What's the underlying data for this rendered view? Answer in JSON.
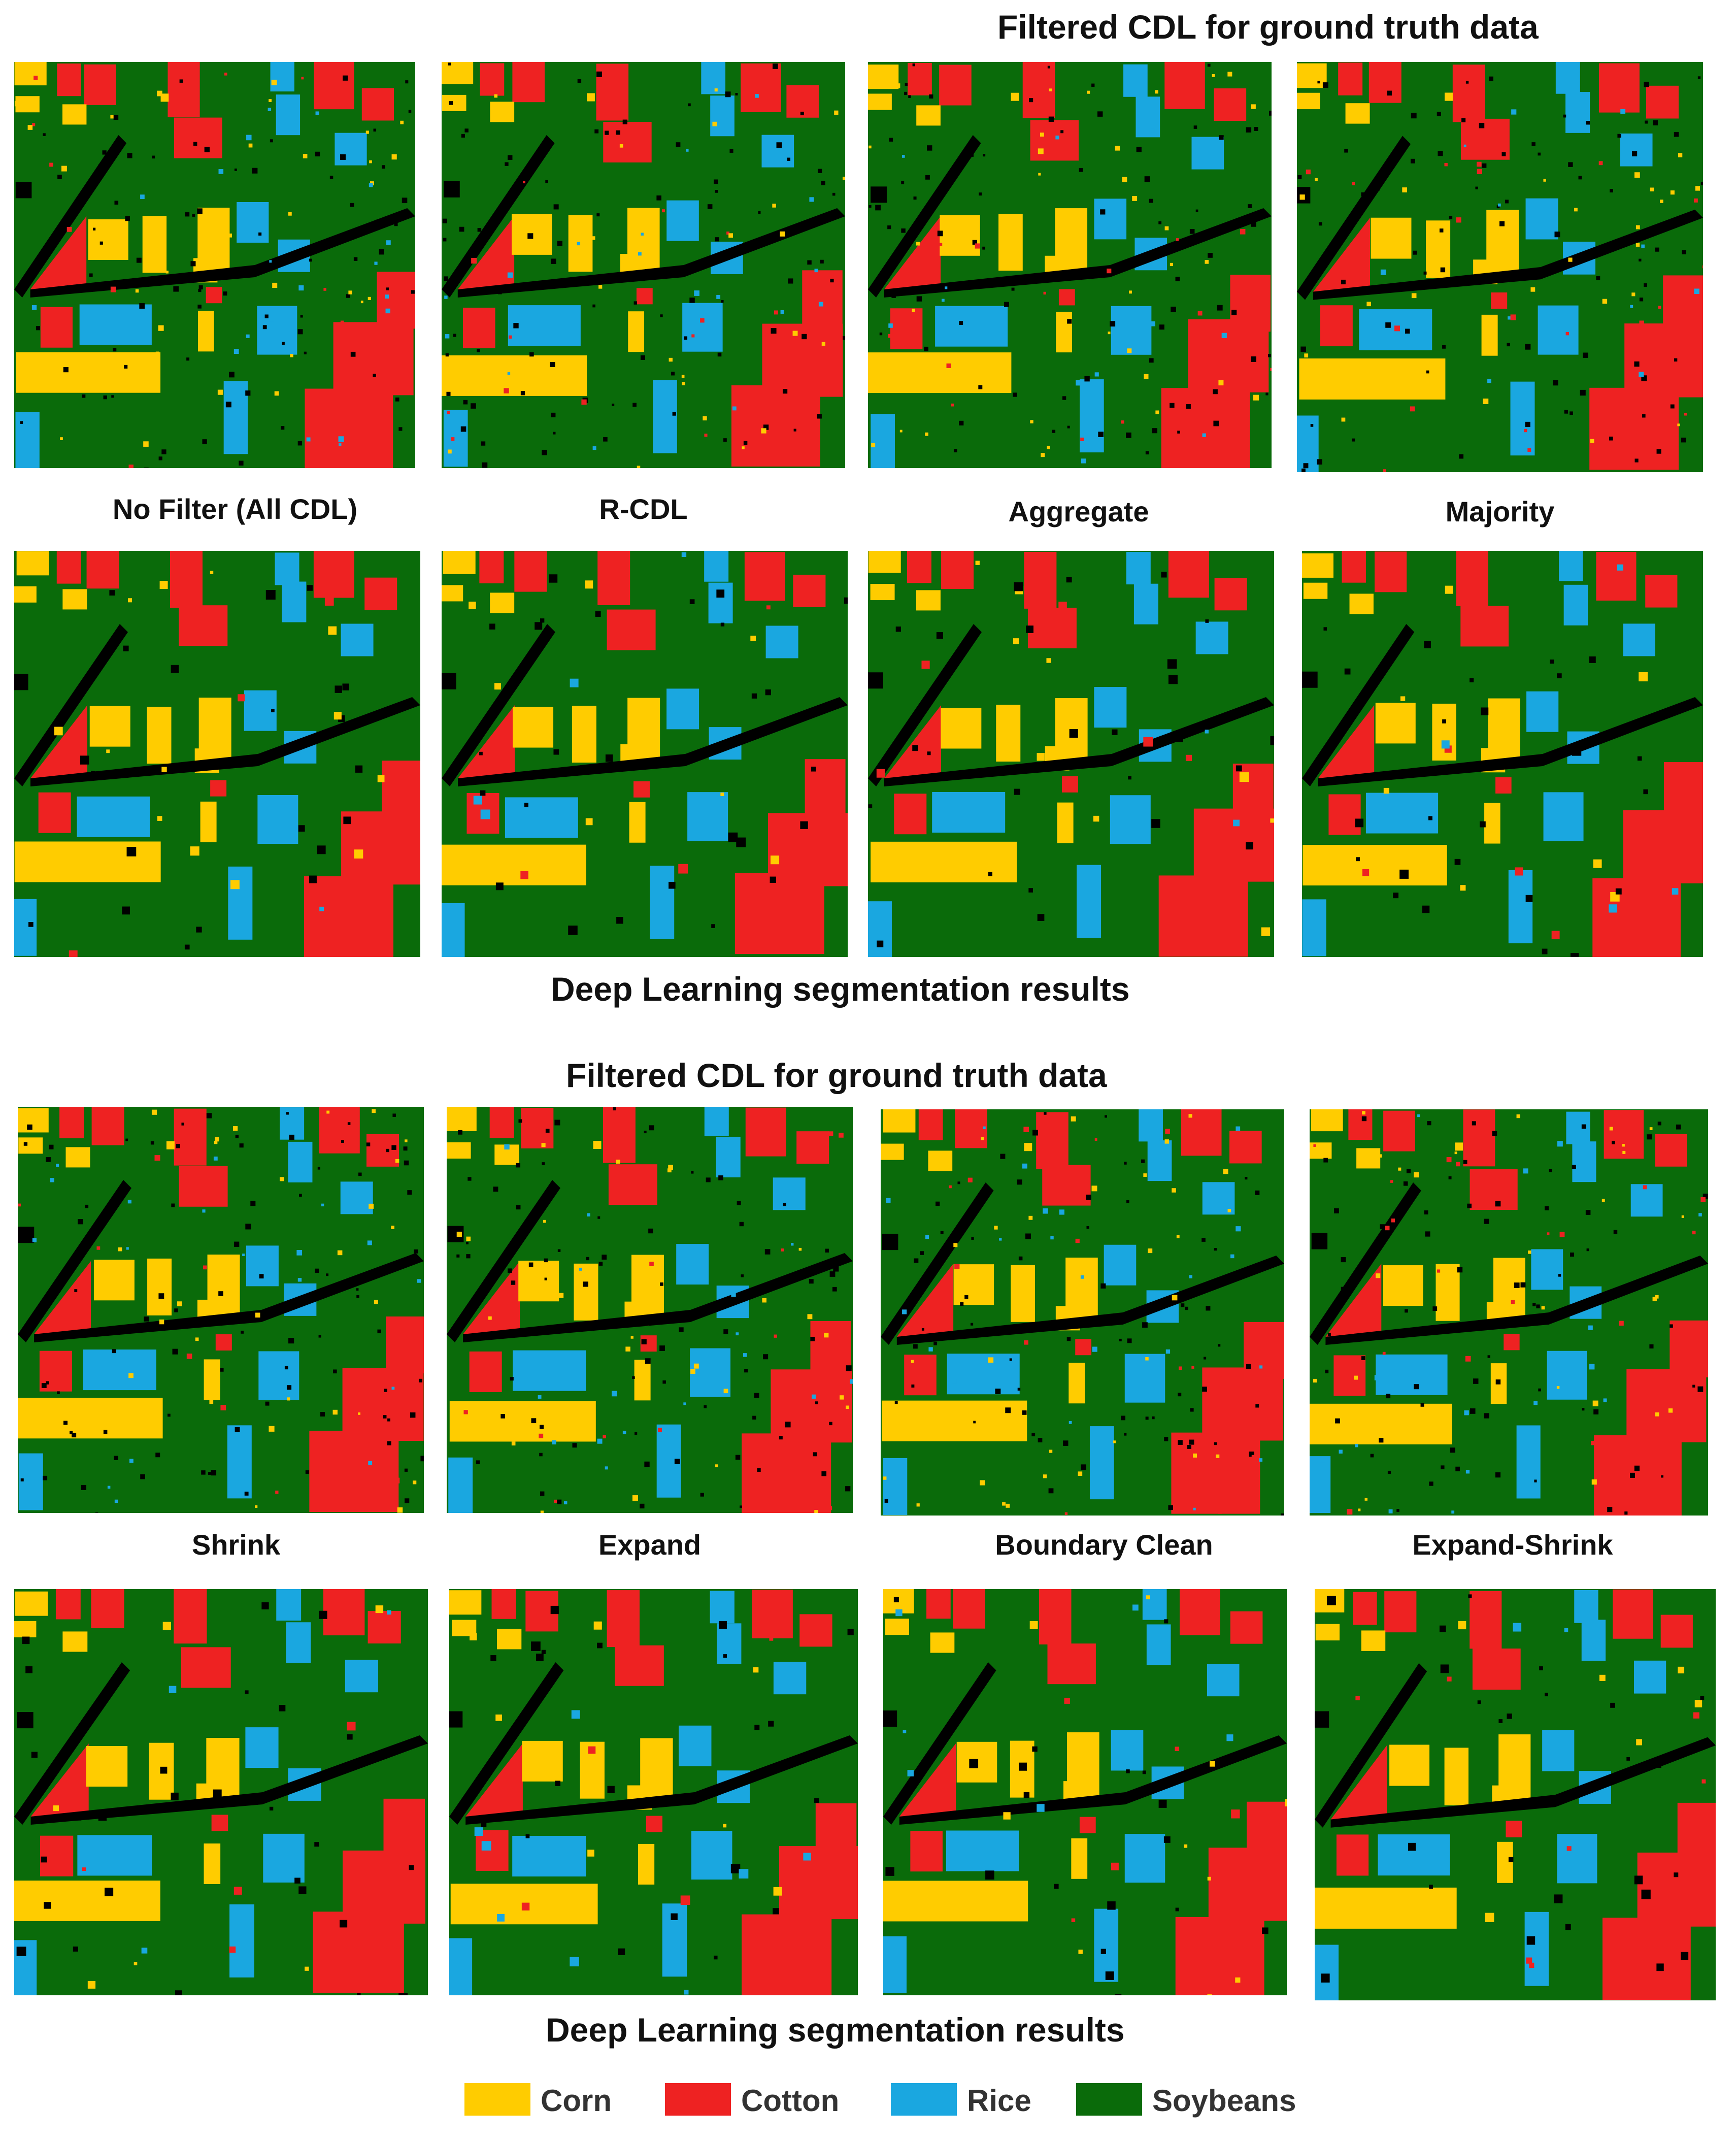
{
  "figure": {
    "section1": {
      "heading_top": "Filtered CDL for ground truth data",
      "labels": [
        "No Filter (All CDL)",
        "R-CDL",
        "Aggregate",
        "Majority"
      ],
      "heading_bottom": "Deep Learning segmentation results"
    },
    "section2": {
      "heading_top": "Filtered CDL for ground truth data",
      "labels": [
        "Shrink",
        "Expand",
        "Boundary Clean",
        "Expand-Shrink"
      ],
      "heading_bottom": "Deep Learning segmentation results"
    },
    "legend": [
      {
        "label": "Corn",
        "color": "#FFCC00"
      },
      {
        "label": "Cotton",
        "color": "#EE2222"
      },
      {
        "label": "Rice",
        "color": "#1AA7E0"
      },
      {
        "label": "Soybeans",
        "color": "#0A6B0A"
      }
    ],
    "colors": {
      "corn": "#FFCC00",
      "cotton": "#EE2222",
      "rice": "#1AA7E0",
      "soybeans": "#0A6B0A",
      "nodata": "#000000"
    }
  }
}
